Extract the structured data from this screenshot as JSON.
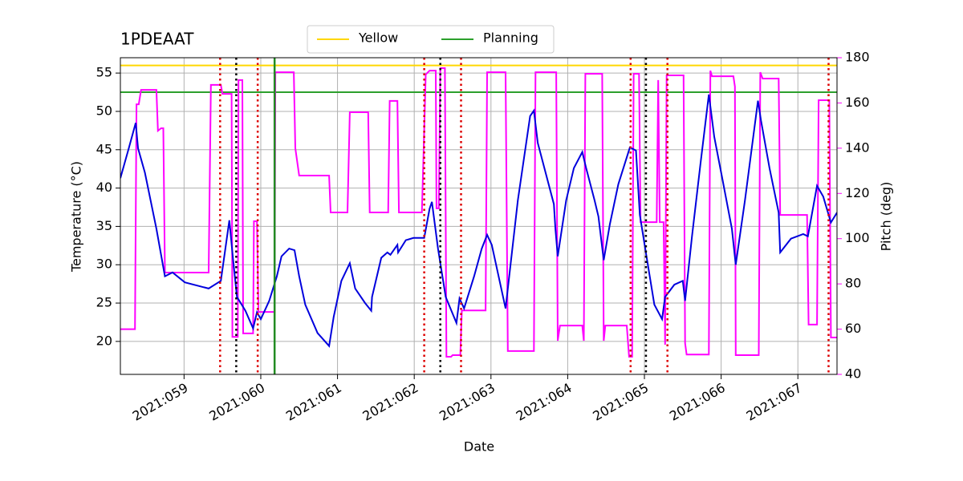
{
  "chart_data": {
    "type": "line",
    "title": "1PDEAAT",
    "xlabel": "Date",
    "ylabel": "Temperature (°C)",
    "y2label": "Pitch (deg)",
    "y2color": "#ff00ff",
    "grid": true,
    "legend": "upper center",
    "xlim": [
      58.17,
      67.51
    ],
    "xticks": [
      {
        "value": 59,
        "label": "2021:059"
      },
      {
        "value": 60,
        "label": "2021:060"
      },
      {
        "value": 61,
        "label": "2021:061"
      },
      {
        "value": 62,
        "label": "2021:062"
      },
      {
        "value": 63,
        "label": "2021:063"
      },
      {
        "value": 64,
        "label": "2021:064"
      },
      {
        "value": 65,
        "label": "2021:065"
      },
      {
        "value": 66,
        "label": "2021:066"
      },
      {
        "value": 67,
        "label": "2021:067"
      }
    ],
    "ylim": [
      15.7,
      57.0
    ],
    "yticks": [
      20,
      25,
      30,
      35,
      40,
      45,
      50,
      55
    ],
    "y2lim": [
      40,
      180
    ],
    "y2ticks": [
      40,
      60,
      80,
      100,
      120,
      140,
      160,
      180
    ],
    "hlines": [
      {
        "name": "Yellow",
        "value": 56,
        "color": "#ffd700"
      },
      {
        "name": "Planning",
        "value": 52.5,
        "color": "#2ca02c"
      }
    ],
    "vlines": [
      {
        "x": 59.47,
        "color": "#dd0000",
        "style": "dotted"
      },
      {
        "x": 59.96,
        "color": "#dd0000",
        "style": "dotted"
      },
      {
        "x": 62.13,
        "color": "#dd0000",
        "style": "dotted"
      },
      {
        "x": 62.61,
        "color": "#dd0000",
        "style": "dotted"
      },
      {
        "x": 64.82,
        "color": "#dd0000",
        "style": "dotted"
      },
      {
        "x": 65.3,
        "color": "#dd0000",
        "style": "dotted"
      },
      {
        "x": 67.4,
        "color": "#dd0000",
        "style": "dotted"
      },
      {
        "x": 59.68,
        "color": "#000000",
        "style": "dotted"
      },
      {
        "x": 62.34,
        "color": "#000000",
        "style": "dotted"
      },
      {
        "x": 65.02,
        "color": "#000000",
        "style": "dotted"
      },
      {
        "x": 60.18,
        "color": "#228b22",
        "style": "solid"
      }
    ],
    "series": [
      {
        "color": "#ff00ff",
        "axis": "y2",
        "x": [
          58.17,
          58.36,
          58.38,
          58.41,
          58.44,
          58.64,
          58.66,
          58.7,
          58.73,
          58.75,
          59.32,
          59.35,
          59.48,
          59.5,
          59.62,
          59.63,
          59.7,
          59.71,
          59.76,
          59.77,
          59.9,
          59.91,
          59.95,
          59.97,
          60.18,
          60.19,
          60.43,
          60.45,
          60.5,
          60.89,
          60.91,
          61.13,
          61.16,
          61.4,
          61.42,
          61.66,
          61.68,
          61.78,
          61.8,
          62.1,
          62.12,
          62.15,
          62.2,
          62.28,
          62.29,
          62.32,
          62.34,
          62.4,
          62.42,
          62.48,
          62.5,
          62.6,
          62.62,
          62.93,
          62.95,
          63.19,
          63.22,
          63.56,
          63.58,
          63.85,
          63.87,
          63.9,
          64.19,
          64.21,
          64.23,
          64.45,
          64.47,
          64.49,
          64.77,
          64.8,
          64.84,
          64.86,
          64.93,
          64.95,
          65.16,
          65.18,
          65.2,
          65.25,
          65.27,
          65.29,
          65.51,
          65.53,
          65.55,
          65.84,
          65.86,
          65.88,
          66.16,
          66.18,
          66.19,
          66.49,
          66.51,
          66.54,
          66.75,
          66.77,
          67.12,
          67.14,
          67.25,
          67.27,
          67.41,
          67.43,
          67.51
        ],
        "values": [
          60,
          60,
          159.4,
          159.4,
          165.8,
          165.8,
          147.7,
          148.8,
          148.8,
          85,
          85,
          168,
          168,
          164,
          164,
          56.6,
          56.6,
          170.1,
          170.1,
          58.1,
          58.1,
          107.7,
          107.7,
          67.6,
          67.6,
          173.6,
          173.6,
          140,
          127.9,
          127.9,
          111.6,
          111.6,
          155.9,
          155.9,
          111.6,
          111.6,
          160.9,
          160.9,
          111.6,
          111.6,
          136.4,
          172.6,
          174.3,
          174.3,
          113.4,
          113.4,
          175.4,
          175.4,
          47.8,
          47.8,
          48.5,
          48.5,
          68.3,
          68.3,
          173.6,
          173.6,
          50.3,
          50.3,
          173.6,
          173.6,
          54.9,
          61.6,
          61.6,
          54.9,
          172.9,
          172.9,
          54.9,
          61.6,
          61.6,
          47.8,
          47.8,
          172.9,
          172.9,
          107.3,
          107.3,
          170.1,
          107.3,
          107.3,
          53.1,
          172.2,
          172.2,
          53.8,
          48.8,
          48.8,
          174.3,
          171.8,
          171.8,
          167.2,
          48.5,
          48.5,
          173.6,
          170.8,
          170.8,
          110.5,
          110.5,
          62,
          62,
          161.2,
          161.2,
          56.3,
          56.3
        ]
      },
      {
        "color": "#0000dd",
        "axis": "y",
        "x": [
          58.17,
          58.28,
          58.37,
          58.4,
          58.49,
          58.64,
          58.75,
          58.85,
          59.01,
          59.32,
          59.48,
          59.59,
          59.64,
          59.69,
          59.8,
          59.9,
          59.95,
          60.0,
          60.11,
          60.21,
          60.27,
          60.37,
          60.44,
          60.5,
          60.58,
          60.74,
          60.89,
          60.95,
          61.05,
          61.16,
          61.23,
          61.36,
          61.44,
          61.45,
          61.57,
          61.65,
          61.69,
          61.78,
          61.79,
          61.89,
          61.99,
          62.13,
          62.2,
          62.23,
          62.31,
          62.41,
          62.55,
          62.59,
          62.65,
          62.78,
          62.88,
          62.95,
          63.01,
          63.19,
          63.35,
          63.51,
          63.56,
          63.61,
          63.82,
          63.84,
          63.87,
          63.98,
          64.08,
          64.19,
          64.24,
          64.35,
          64.4,
          64.47,
          64.55,
          64.66,
          64.81,
          64.89,
          64.94,
          65.03,
          65.13,
          65.23,
          65.27,
          65.39,
          65.5,
          65.53,
          65.62,
          65.73,
          65.84,
          65.91,
          66.02,
          66.14,
          66.19,
          66.31,
          66.48,
          66.52,
          66.63,
          66.75,
          66.77,
          66.91,
          67.07,
          67.13,
          67.25,
          67.33,
          67.43,
          67.51
        ],
        "values": [
          41.3,
          45.2,
          48.5,
          45.2,
          42.0,
          34.7,
          28.5,
          29.0,
          27.7,
          26.9,
          27.9,
          35.8,
          30.6,
          25.8,
          24.0,
          21.7,
          23.8,
          22.9,
          25.3,
          28.5,
          31.1,
          32.1,
          31.9,
          28.5,
          24.8,
          21.1,
          19.4,
          23.2,
          27.9,
          30.2,
          26.9,
          25.0,
          24.0,
          25.8,
          30.9,
          31.6,
          31.3,
          32.6,
          31.6,
          33.2,
          33.5,
          33.5,
          37.3,
          38.2,
          32.1,
          25.8,
          22.4,
          25.6,
          24.3,
          28.5,
          32.1,
          33.9,
          32.6,
          24.3,
          38.4,
          49.4,
          50.1,
          45.9,
          37.9,
          34.7,
          31.1,
          38.4,
          42.6,
          44.7,
          42.6,
          38.4,
          36.3,
          30.6,
          35.3,
          40.5,
          45.3,
          44.9,
          36.5,
          30.9,
          24.8,
          22.9,
          25.8,
          27.4,
          27.9,
          25.3,
          33.7,
          43.1,
          52.2,
          46.7,
          41.0,
          34.7,
          30.0,
          38.4,
          51.4,
          48.8,
          42.6,
          36.8,
          31.6,
          33.4,
          34.0,
          33.7,
          40.3,
          38.9,
          35.5,
          36.8
        ]
      }
    ]
  }
}
